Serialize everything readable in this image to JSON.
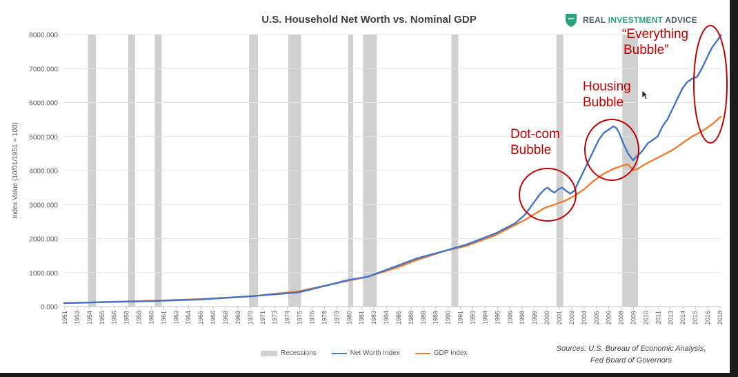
{
  "logo": {
    "text_part1": "REAL ",
    "text_part2": "INVESTMENT",
    "text_part3": " ADVICE"
  },
  "sources": {
    "line1": "Sources: U.S. Bureau of Economic Analysis,",
    "line2": "Fed Board of Governors"
  },
  "annotations": {
    "dotcom_1": "Dot-com",
    "dotcom_2": "Bubble",
    "housing_1": "Housing",
    "housing_2": "Bubble",
    "everything_1": "“Everything",
    "everything_2": "Bubble”"
  },
  "colors": {
    "net_worth": "#4472c4",
    "gdp": "#ed7d31",
    "recession": "#d0d0d0",
    "annotation": "#c00000",
    "logo_green": "#27a37b"
  },
  "chart_data": {
    "type": "line",
    "title": "U.S. Household Net Worth vs. Nominal GDP",
    "ylabel": "Index Value (10/01/1951 = 100)",
    "xlabel": "",
    "xlim": [
      1951,
      2018
    ],
    "ylim": [
      0,
      8000
    ],
    "yticks": [
      0,
      1000,
      2000,
      3000,
      4000,
      5000,
      6000,
      7000,
      8000
    ],
    "ytick_labels": [
      "0.000",
      "1000.000",
      "2000.000",
      "3000.000",
      "4000.000",
      "5000.000",
      "6000.000",
      "7000.000",
      "8000.000"
    ],
    "xtick_labels": [
      "1951",
      "1953",
      "1954",
      "1955",
      "1956",
      "1958",
      "1959",
      "1960",
      "1961",
      "1963",
      "1964",
      "1965",
      "1966",
      "1968",
      "1969",
      "1970",
      "1971",
      "1973",
      "1974",
      "1975",
      "1976",
      "1978",
      "1979",
      "1980",
      "1981",
      "1983",
      "1984",
      "1985",
      "1986",
      "1988",
      "1989",
      "1990",
      "1991",
      "1993",
      "1994",
      "1995",
      "1996",
      "1998",
      "1999",
      "2000",
      "2001",
      "2003",
      "2004",
      "2005",
      "2006",
      "2008",
      "2009",
      "2010",
      "2011",
      "2013",
      "2014",
      "2015",
      "2016",
      "2018"
    ],
    "grid": "horizontal",
    "legend_position": "bottom",
    "legend": [
      "Recessions",
      "Net Worth Index",
      "GDP Index"
    ],
    "recessions": [
      [
        1953.5,
        1954.3
      ],
      [
        1957.6,
        1958.3
      ],
      [
        1960.3,
        1961.0
      ],
      [
        1969.9,
        1970.8
      ],
      [
        1973.9,
        1975.2
      ],
      [
        1980.0,
        1980.5
      ],
      [
        1981.5,
        1982.9
      ],
      [
        1990.5,
        1991.2
      ],
      [
        2001.2,
        2001.9
      ],
      [
        2007.9,
        2009.5
      ]
    ],
    "series": [
      {
        "name": "Net Worth Index",
        "x": [
          1951,
          1955,
          1960,
          1965,
          1970,
          1975,
          1980,
          1982,
          1985,
          1987,
          1990,
          1992,
          1995,
          1996,
          1997,
          1998,
          1998.5,
          1999,
          1999.5,
          2000,
          2000.3,
          2000.6,
          2001,
          2001.4,
          2001.8,
          2002.2,
          2002.6,
          2003,
          2003.5,
          2004,
          2004.5,
          2005,
          2005.5,
          2006,
          2006.5,
          2007,
          2007.3,
          2007.6,
          2008,
          2008.5,
          2009,
          2009.3,
          2009.7,
          2010,
          2010.5,
          2011,
          2011.5,
          2012,
          2012.5,
          2013,
          2013.5,
          2014,
          2014.5,
          2015,
          2015.5,
          2016,
          2016.5,
          2017,
          2017.5,
          2018
        ],
        "values": [
          100,
          130,
          160,
          210,
          300,
          420,
          780,
          880,
          1200,
          1420,
          1650,
          1820,
          2150,
          2300,
          2450,
          2700,
          2900,
          3100,
          3300,
          3450,
          3500,
          3420,
          3350,
          3450,
          3500,
          3400,
          3320,
          3400,
          3700,
          4000,
          4300,
          4600,
          4900,
          5100,
          5200,
          5300,
          5250,
          5100,
          4800,
          4500,
          4300,
          4400,
          4500,
          4600,
          4800,
          4900,
          5000,
          5300,
          5500,
          5800,
          6100,
          6400,
          6600,
          6700,
          6750,
          7000,
          7300,
          7600,
          7800,
          8000
        ]
      },
      {
        "name": "GDP Index",
        "x": [
          1951,
          1955,
          1960,
          1965,
          1970,
          1975,
          1980,
          1982,
          1985,
          1987,
          1990,
          1992,
          1995,
          1998,
          2000,
          2001,
          2002,
          2003,
          2004,
          2005,
          2006,
          2007,
          2008,
          2008.5,
          2009,
          2009.5,
          2010,
          2011,
          2012,
          2013,
          2014,
          2015,
          2016,
          2017,
          2018
        ],
        "values": [
          100,
          130,
          170,
          220,
          300,
          450,
          760,
          880,
          1150,
          1370,
          1650,
          1780,
          2100,
          2550,
          2900,
          3000,
          3100,
          3250,
          3450,
          3700,
          3900,
          4050,
          4150,
          4180,
          4000,
          4050,
          4150,
          4300,
          4450,
          4600,
          4800,
          5000,
          5150,
          5350,
          5600
        ]
      }
    ]
  }
}
